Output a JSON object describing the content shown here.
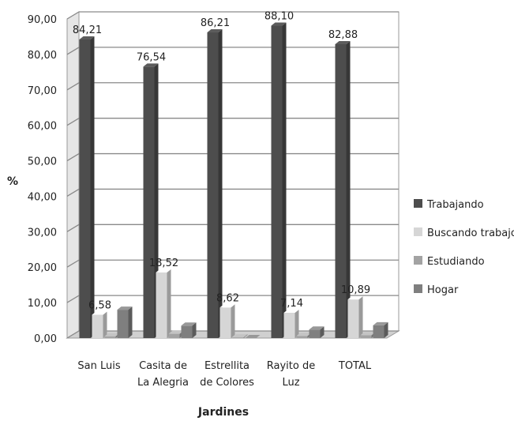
{
  "chart_data": {
    "type": "bar",
    "title": "",
    "xlabel": "Jardines",
    "ylabel": "%",
    "ylim": [
      0,
      90
    ],
    "yticks": [
      "0,00",
      "10,00",
      "20,00",
      "30,00",
      "40,00",
      "50,00",
      "60,00",
      "70,00",
      "80,00",
      "90,00"
    ],
    "categories": [
      [
        "San Luis"
      ],
      [
        "Casita de",
        "La Alegria"
      ],
      [
        "Estrellita",
        "de Colores"
      ],
      [
        "Rayito de",
        "Luz"
      ],
      [
        "TOTAL"
      ]
    ],
    "series": [
      {
        "name": "Trabajando",
        "color": "#4d4d4d",
        "values": [
          84.21,
          76.54,
          86.21,
          88.1,
          82.88
        ],
        "labels": [
          "84,21",
          "76,54",
          "86,21",
          "88,10",
          "82,88"
        ]
      },
      {
        "name": "Buscando trabajo",
        "color": "#d6d6d6",
        "values": [
          6.58,
          18.52,
          8.62,
          7.14,
          10.89
        ],
        "labels": [
          "6,58",
          "18,52",
          "8,62",
          "7,14",
          "10,89"
        ]
      },
      {
        "name": "Estudiando",
        "color": "#a3a3a3",
        "values": [
          0.5,
          1.2,
          0.2,
          0.6,
          0.8
        ],
        "labels": null
      },
      {
        "name": "Hogar",
        "color": "#7f7f7f",
        "values": [
          8.0,
          3.5,
          0.0,
          2.4,
          3.6
        ],
        "labels": null
      }
    ],
    "grid": true,
    "legend_position": "right",
    "style": "3d-clustered-column"
  }
}
